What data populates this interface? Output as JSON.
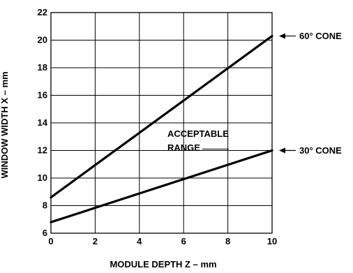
{
  "chart_data": {
    "type": "line",
    "title": "",
    "xlabel": "MODULE DEPTH Z – mm",
    "ylabel": "WINDOW WIDTH X – mm",
    "xlim": [
      0,
      10
    ],
    "ylim": [
      6,
      22
    ],
    "xticks": [
      0,
      2,
      4,
      6,
      8,
      10
    ],
    "yticks": [
      6,
      8,
      10,
      12,
      14,
      16,
      18,
      20,
      22
    ],
    "xtick_labels": [
      "0",
      "2",
      "4",
      "6",
      "8",
      "10"
    ],
    "ytick_labels": [
      "6",
      "8",
      "10",
      "12",
      "14",
      "16",
      "18",
      "20",
      "22"
    ],
    "grid": true,
    "series": [
      {
        "name": "60° CONE",
        "x": [
          0,
          10
        ],
        "y": [
          8.6,
          20.3
        ]
      },
      {
        "name": "30° CONE",
        "x": [
          0,
          10
        ],
        "y": [
          6.8,
          12.0
        ]
      }
    ],
    "region_label": [
      "ACCEPTABLE",
      "RANGE"
    ],
    "colors": {
      "line": "#000000",
      "grid": "#000000",
      "background": "#ffffff"
    }
  }
}
